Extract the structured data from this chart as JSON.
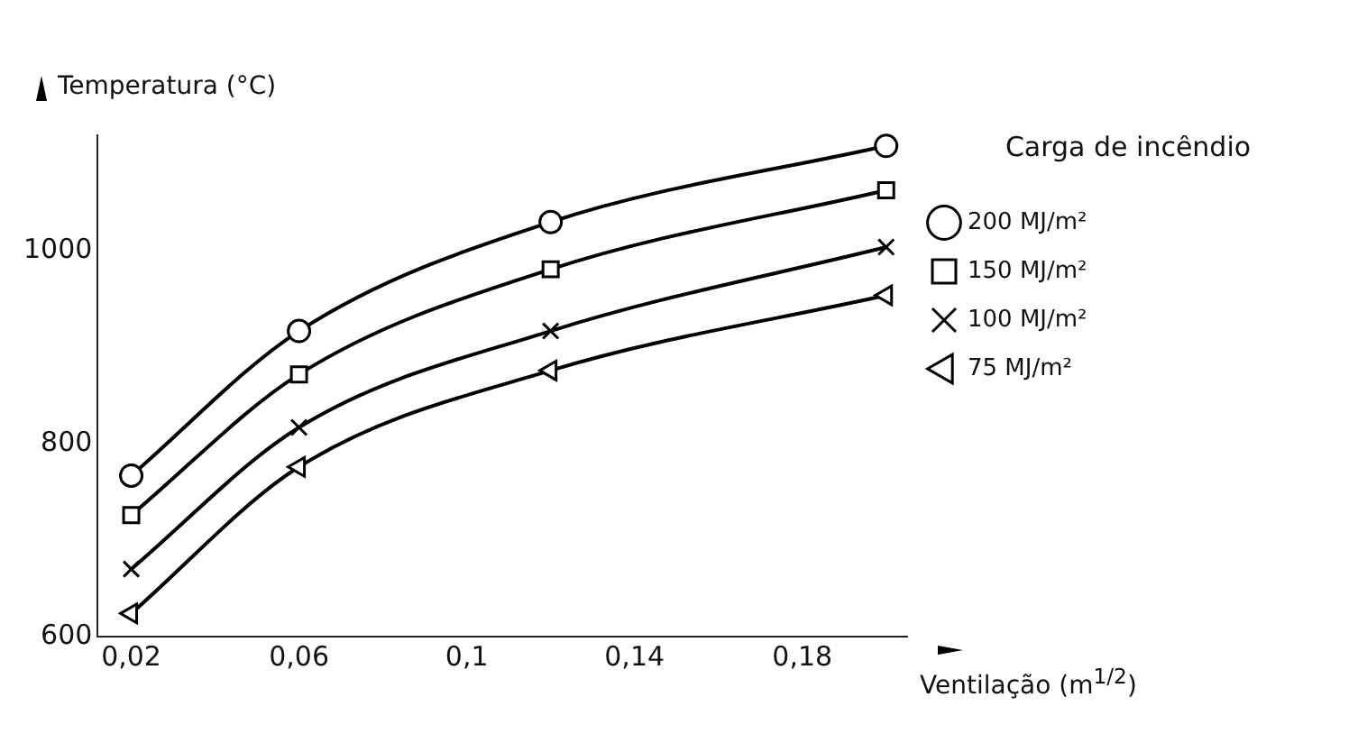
{
  "chart_data": {
    "type": "line",
    "xlabel": "Ventilação (m$^{1/2}$)",
    "ylabel": "Temperatura (°C)",
    "legend_title": "Carga de incêndio",
    "legend": "top right",
    "grid": false,
    "x": [
      0.02,
      0.06,
      0.12,
      0.2
    ],
    "xlim": [
      0.012,
      0.205
    ],
    "xticks": [
      {
        "value": 0.02,
        "label": "0,02"
      },
      {
        "value": 0.06,
        "label": "0,06"
      },
      {
        "value": 0.1,
        "label": "0,1"
      },
      {
        "value": 0.14,
        "label": "0,14"
      },
      {
        "value": 0.18,
        "label": "0,18"
      }
    ],
    "ylim": [
      600,
      1120
    ],
    "yticks": [
      600,
      800,
      1000
    ],
    "series": [
      {
        "name": "200 MJ/m²",
        "color": "#000000",
        "marker": "circle",
        "values": [
          767,
          917,
          1030,
          1109
        ]
      },
      {
        "name": "150 MJ/m²",
        "color": "#000000",
        "marker": "square",
        "values": [
          726,
          872,
          981,
          1063
        ]
      },
      {
        "name": "100 MJ/m²",
        "color": "#000000",
        "marker": "cross",
        "values": [
          670,
          817,
          917,
          1004
        ]
      },
      {
        "name": "75 MJ/m²",
        "color": "#000000",
        "marker": "triangle",
        "values": [
          624,
          776,
          876,
          954
        ]
      }
    ]
  }
}
